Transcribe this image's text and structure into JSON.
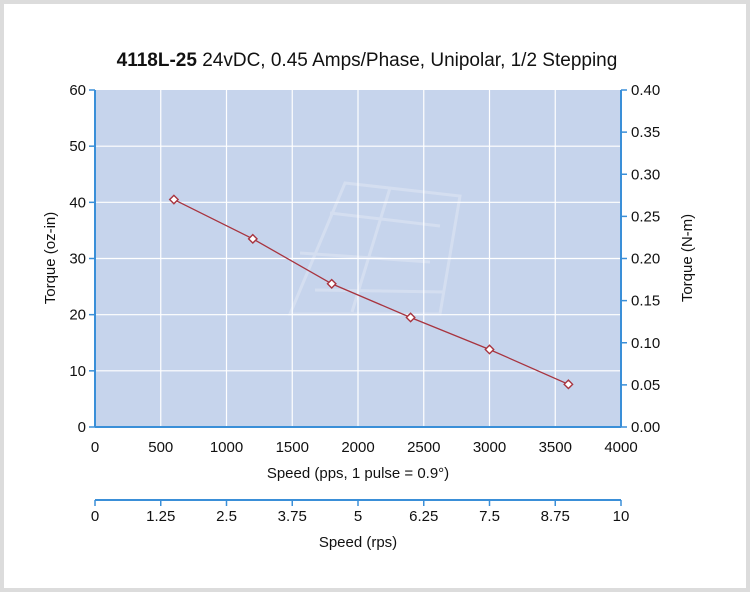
{
  "chart_data": {
    "type": "line",
    "title_bold": "4118L-25",
    "title_rest": " 24vDC, 0.45 Amps/Phase, Unipolar, 1/2 Stepping",
    "xlabel": "Speed (pps, 1 pulse = 0.9°)",
    "ylabel_left": "Torque (oz-in)",
    "ylabel_right": "Torque (N-m)",
    "xlabel_secondary": "Speed (rps)",
    "xlim": [
      0,
      4000
    ],
    "ylim": [
      0,
      60
    ],
    "ylim_right": [
      0,
      0.4
    ],
    "xlim_secondary": [
      0,
      10
    ],
    "x_ticks": [
      "0",
      "500",
      "1000",
      "1500",
      "2000",
      "2500",
      "3000",
      "3500",
      "4000"
    ],
    "y_ticks": [
      "0",
      "10",
      "20",
      "30",
      "40",
      "50",
      "60"
    ],
    "y_right_ticks": [
      "0.00",
      "0.05",
      "0.10",
      "0.15",
      "0.20",
      "0.25",
      "0.30",
      "0.35",
      "0.40"
    ],
    "x_secondary_ticks": [
      "0",
      "1.25",
      "2.5",
      "3.75",
      "5",
      "6.25",
      "7.5",
      "8.75",
      "10"
    ],
    "grid": true,
    "series": [
      {
        "x": [
          600,
          1200,
          1800,
          2400,
          3000,
          3600
        ],
        "y": [
          40.5,
          33.5,
          25.5,
          19.5,
          13.8,
          7.6
        ]
      }
    ],
    "colors": {
      "plot_bg": "#c6d4ec",
      "grid": "#ffffff",
      "axis": "#3a8fd8",
      "line": "#a8343f",
      "marker_fill": "#ffffff"
    }
  }
}
